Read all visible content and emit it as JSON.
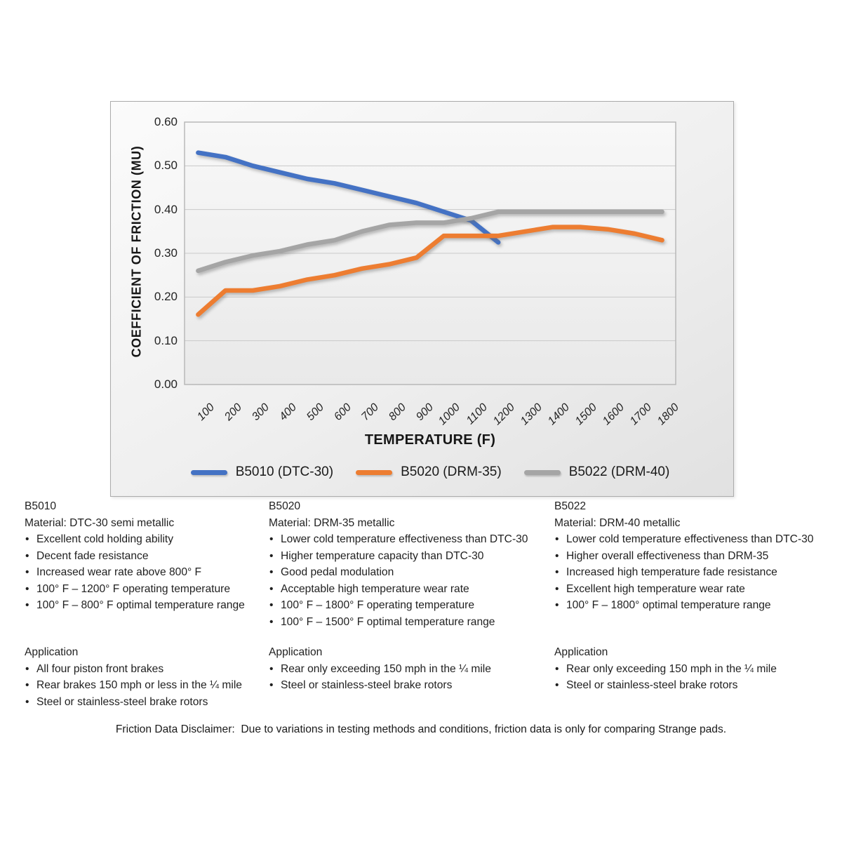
{
  "chart_data": {
    "type": "line",
    "title": "",
    "xlabel": "TEMPERATURE (F)",
    "ylabel": "COEFFICIENT OF FRICTION (MU)",
    "categories": [
      "100",
      "200",
      "300",
      "400",
      "500",
      "600",
      "700",
      "800",
      "900",
      "1000",
      "1100",
      "1200",
      "1300",
      "1400",
      "1500",
      "1600",
      "1700",
      "1800"
    ],
    "y_tick_labels": [
      "0.60",
      "0.50",
      "0.40",
      "0.30",
      "0.20",
      "0.10",
      "0.00"
    ],
    "ylim": [
      0,
      0.6
    ],
    "grid": true,
    "legend_position": "bottom",
    "gridline_color": "#c9c9c9",
    "plot_border_color": "#b5b5b5",
    "series": [
      {
        "name": "B5010 (DTC-30)",
        "color": "#4472C4",
        "values": [
          0.53,
          0.52,
          0.5,
          0.485,
          0.47,
          0.46,
          0.445,
          0.43,
          0.415,
          0.395,
          0.375,
          0.325,
          null,
          null,
          null,
          null,
          null,
          null
        ]
      },
      {
        "name": "B5020 (DRM-35)",
        "color": "#ED7D31",
        "values": [
          0.16,
          0.215,
          0.215,
          0.225,
          0.24,
          0.25,
          0.265,
          0.275,
          0.29,
          0.34,
          0.34,
          0.34,
          0.35,
          0.36,
          0.36,
          0.355,
          0.345,
          0.33
        ]
      },
      {
        "name": "B5022 (DRM-40)",
        "color": "#A5A5A5",
        "values": [
          0.26,
          0.28,
          0.295,
          0.305,
          0.32,
          0.33,
          0.35,
          0.365,
          0.37,
          0.37,
          0.38,
          0.395,
          0.395,
          0.395,
          0.395,
          0.395,
          0.395,
          0.395
        ]
      }
    ]
  },
  "sections": [
    {
      "model": "B5010",
      "material": "Material: DTC-30 semi metallic",
      "features": [
        "Excellent cold holding ability",
        "Decent fade resistance",
        "Increased wear rate above 800° F",
        "100° F – 1200° F operating temperature",
        "100° F – 800° F optimal temperature range"
      ],
      "application_heading": "Application",
      "applications": [
        "All four piston front brakes",
        "Rear brakes 150 mph or less in the ¼ mile",
        "Steel or stainless-steel brake rotors"
      ]
    },
    {
      "model": "B5020",
      "material": "Material: DRM-35 metallic",
      "features": [
        "Lower cold temperature effectiveness than DTC-30",
        "Higher temperature capacity than DTC-30",
        "Good pedal modulation",
        "Acceptable high temperature wear rate",
        "100° F – 1800° F operating temperature",
        "100° F – 1500° F optimal temperature range"
      ],
      "application_heading": "Application",
      "applications": [
        "Rear only exceeding 150 mph in the ¼ mile",
        "Steel or stainless-steel brake rotors"
      ]
    },
    {
      "model": "B5022",
      "material": "Material: DRM-40 metallic",
      "features": [
        "Lower cold temperature effectiveness than DTC-30",
        "Higher overall effectiveness than DRM-35",
        "Increased high temperature fade resistance",
        "Excellent high temperature wear rate",
        "100° F – 1800° optimal temperature range"
      ],
      "application_heading": "Application",
      "applications": [
        "Rear only exceeding 150 mph in the ¼ mile",
        "Steel or stainless-steel brake rotors"
      ]
    }
  ],
  "disclaimer": "Friction Data Disclaimer:  Due to variations in testing methods and conditions, friction data is only for comparing Strange pads."
}
